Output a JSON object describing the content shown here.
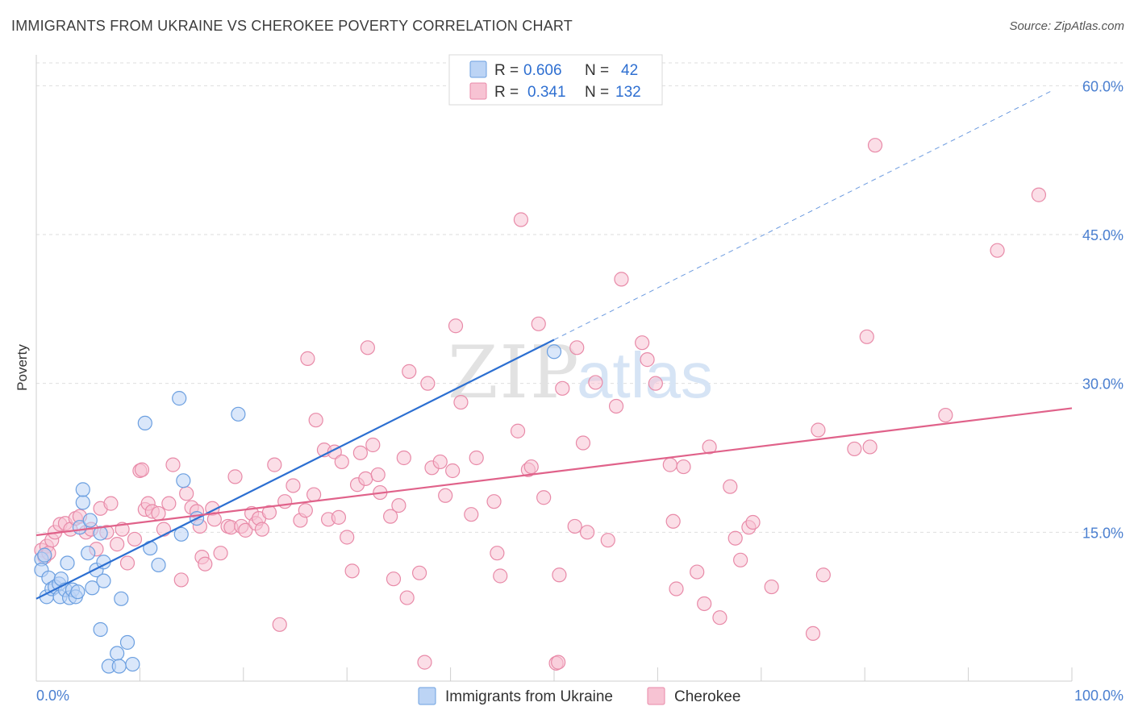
{
  "title": "IMMIGRANTS FROM UKRAINE VS CHEROKEE POVERTY CORRELATION CHART",
  "source": "Source: ZipAtlas.com",
  "chart_data": {
    "type": "scatter",
    "title": "IMMIGRANTS FROM UKRAINE VS CHEROKEE POVERTY CORRELATION CHART",
    "xlabel": "",
    "ylabel": "Poverty",
    "xlim": [
      0,
      100
    ],
    "ylim": [
      0,
      60
    ],
    "x_tick_labels": [
      "0.0%",
      "100.0%"
    ],
    "y_ticks": [
      15,
      30,
      45,
      60
    ],
    "y_tick_labels": [
      "15.0%",
      "30.0%",
      "45.0%",
      "60.0%"
    ],
    "grid": true,
    "watermark": "ZIPatlas",
    "legend": {
      "r_label": "R =",
      "n_label": "N =",
      "entries": [
        {
          "name": "Immigrants from Ukraine",
          "r": "0.606",
          "n": "42"
        },
        {
          "name": "Cherokee",
          "r": "0.341",
          "n": "132"
        }
      ]
    },
    "series": [
      {
        "name": "Immigrants from Ukraine",
        "color": "#6b9fe0",
        "fill": "#bcd4f5",
        "line_color": "#2c6fd1",
        "trend": {
          "x0": 0,
          "y0": 8.3,
          "x1": 50,
          "y1": 34.4,
          "extend_to_x": 98,
          "dashed_extension": true
        },
        "points": [
          [
            0.5,
            12.3
          ],
          [
            0.5,
            11.2
          ],
          [
            0.8,
            12.7
          ],
          [
            1,
            8.5
          ],
          [
            1.2,
            10.4
          ],
          [
            1.5,
            9.3
          ],
          [
            1.8,
            9.5
          ],
          [
            2.2,
            9.8
          ],
          [
            2.3,
            8.5
          ],
          [
            2.4,
            10.3
          ],
          [
            2.8,
            9.2
          ],
          [
            3,
            11.9
          ],
          [
            3.2,
            8.4
          ],
          [
            3.5,
            9.2
          ],
          [
            3.8,
            8.5
          ],
          [
            4.0,
            9.0
          ],
          [
            4.2,
            15.5
          ],
          [
            4.5,
            18.0
          ],
          [
            4.5,
            19.3
          ],
          [
            5,
            12.9
          ],
          [
            5.2,
            16.2
          ],
          [
            5.4,
            9.4
          ],
          [
            5.8,
            11.2
          ],
          [
            6.2,
            14.9
          ],
          [
            6.2,
            5.2
          ],
          [
            6.5,
            10.1
          ],
          [
            6.5,
            12.0
          ],
          [
            7,
            1.5
          ],
          [
            7.8,
            2.8
          ],
          [
            8,
            1.5
          ],
          [
            8.2,
            8.3
          ],
          [
            8.8,
            3.9
          ],
          [
            9.3,
            1.7
          ],
          [
            10.5,
            26.0
          ],
          [
            11,
            13.4
          ],
          [
            11.8,
            11.7
          ],
          [
            13.8,
            28.5
          ],
          [
            14,
            14.8
          ],
          [
            14.2,
            20.2
          ],
          [
            15.5,
            16.4
          ],
          [
            19.5,
            26.9
          ],
          [
            50,
            33.2
          ]
        ]
      },
      {
        "name": "Cherokee",
        "color": "#e88aa8",
        "fill": "#f7c3d3",
        "line_color": "#e0628a",
        "trend": {
          "x0": 0,
          "y0": 14.7,
          "x1": 100,
          "y1": 27.5
        },
        "points": [
          [
            0.5,
            13.2
          ],
          [
            0.8,
            12.5
          ],
          [
            1,
            13.6
          ],
          [
            1.2,
            12.9
          ],
          [
            1.5,
            14.2
          ],
          [
            1.8,
            15.0
          ],
          [
            2.3,
            15.8
          ],
          [
            2.8,
            15.9
          ],
          [
            3.3,
            15.3
          ],
          [
            3.8,
            16.4
          ],
          [
            4.2,
            16.6
          ],
          [
            4.8,
            15.0
          ],
          [
            5.3,
            15.3
          ],
          [
            5.8,
            13.3
          ],
          [
            6.2,
            17.4
          ],
          [
            6.8,
            15.0
          ],
          [
            7.2,
            17.9
          ],
          [
            7.8,
            13.8
          ],
          [
            8.3,
            15.3
          ],
          [
            8.8,
            11.9
          ],
          [
            9.5,
            14.3
          ],
          [
            10,
            21.2
          ],
          [
            10.5,
            17.3
          ],
          [
            10.8,
            17.9
          ],
          [
            11.2,
            17.1
          ],
          [
            11.8,
            16.9
          ],
          [
            12.3,
            15.3
          ],
          [
            12.8,
            17.9
          ],
          [
            13.2,
            21.8
          ],
          [
            14,
            10.2
          ],
          [
            14.5,
            18.9
          ],
          [
            15,
            17.5
          ],
          [
            15.5,
            17.1
          ],
          [
            15.8,
            15.6
          ],
          [
            16,
            12.5
          ],
          [
            16.3,
            11.8
          ],
          [
            17,
            17.4
          ],
          [
            17.2,
            16.3
          ],
          [
            17.8,
            12.9
          ],
          [
            18.5,
            15.6
          ],
          [
            18.8,
            15.5
          ],
          [
            19.2,
            20.6
          ],
          [
            19.8,
            15.6
          ],
          [
            20.2,
            15.2
          ],
          [
            20.8,
            16.9
          ],
          [
            21.2,
            15.9
          ],
          [
            21.5,
            16.4
          ],
          [
            21.8,
            15.3
          ],
          [
            22.5,
            17.0
          ],
          [
            23,
            21.8
          ],
          [
            23.5,
            5.7
          ],
          [
            24,
            18.1
          ],
          [
            24.8,
            19.7
          ],
          [
            25.5,
            16.2
          ],
          [
            26,
            17.2
          ],
          [
            26.2,
            32.5
          ],
          [
            26.8,
            18.8
          ],
          [
            27,
            26.3
          ],
          [
            27.8,
            23.3
          ],
          [
            28.2,
            16.3
          ],
          [
            28.8,
            23.1
          ],
          [
            29.2,
            16.5
          ],
          [
            29.5,
            22.1
          ],
          [
            30,
            14.5
          ],
          [
            30.5,
            11.1
          ],
          [
            31,
            19.8
          ],
          [
            31.3,
            23.0
          ],
          [
            31.8,
            20.4
          ],
          [
            32,
            33.6
          ],
          [
            32.5,
            23.8
          ],
          [
            33,
            20.8
          ],
          [
            33.2,
            19.0
          ],
          [
            34.2,
            16.6
          ],
          [
            34.5,
            10.3
          ],
          [
            35,
            17.7
          ],
          [
            35.5,
            22.5
          ],
          [
            35.8,
            8.4
          ],
          [
            36,
            31.2
          ],
          [
            37,
            10.9
          ],
          [
            37.5,
            1.9
          ],
          [
            37.8,
            30.0
          ],
          [
            38.2,
            21.5
          ],
          [
            39,
            22.1
          ],
          [
            39.5,
            18.7
          ],
          [
            40.2,
            21.2
          ],
          [
            40.5,
            35.8
          ],
          [
            41,
            28.1
          ],
          [
            42,
            16.8
          ],
          [
            42.5,
            22.5
          ],
          [
            44.2,
            18.1
          ],
          [
            44.5,
            12.9
          ],
          [
            44.8,
            10.6
          ],
          [
            46.5,
            25.2
          ],
          [
            46.8,
            46.5
          ],
          [
            47.5,
            21.3
          ],
          [
            47.8,
            21.6
          ],
          [
            48.5,
            36.0
          ],
          [
            49,
            18.5
          ],
          [
            50.2,
            1.8
          ],
          [
            50.5,
            10.7
          ],
          [
            50.8,
            29.5
          ],
          [
            52,
            15.6
          ],
          [
            52.2,
            33.6
          ],
          [
            52.8,
            24.0
          ],
          [
            53.2,
            15.0
          ],
          [
            54,
            30.1
          ],
          [
            55.2,
            14.2
          ],
          [
            56,
            27.7
          ],
          [
            56.5,
            40.5
          ],
          [
            58.5,
            34.1
          ],
          [
            59,
            32.4
          ],
          [
            59.8,
            30.0
          ],
          [
            61.2,
            21.8
          ],
          [
            61.5,
            16.1
          ],
          [
            61.8,
            9.3
          ],
          [
            62.5,
            21.6
          ],
          [
            63.8,
            11.0
          ],
          [
            64.5,
            7.8
          ],
          [
            65,
            23.6
          ],
          [
            66,
            6.4
          ],
          [
            67,
            19.6
          ],
          [
            67.5,
            14.4
          ],
          [
            68,
            12.2
          ],
          [
            68.8,
            15.5
          ],
          [
            69.2,
            16.0
          ],
          [
            71,
            9.5
          ],
          [
            75,
            4.8
          ],
          [
            75.5,
            25.3
          ],
          [
            76,
            10.7
          ],
          [
            79,
            23.4
          ],
          [
            80.2,
            34.7
          ],
          [
            80.5,
            23.6
          ],
          [
            81,
            54.0
          ],
          [
            87.8,
            26.8
          ],
          [
            92.8,
            43.4
          ],
          [
            96.8,
            49.0
          ],
          [
            50.4,
            1.9
          ],
          [
            10.2,
            21.3
          ]
        ]
      }
    ]
  }
}
